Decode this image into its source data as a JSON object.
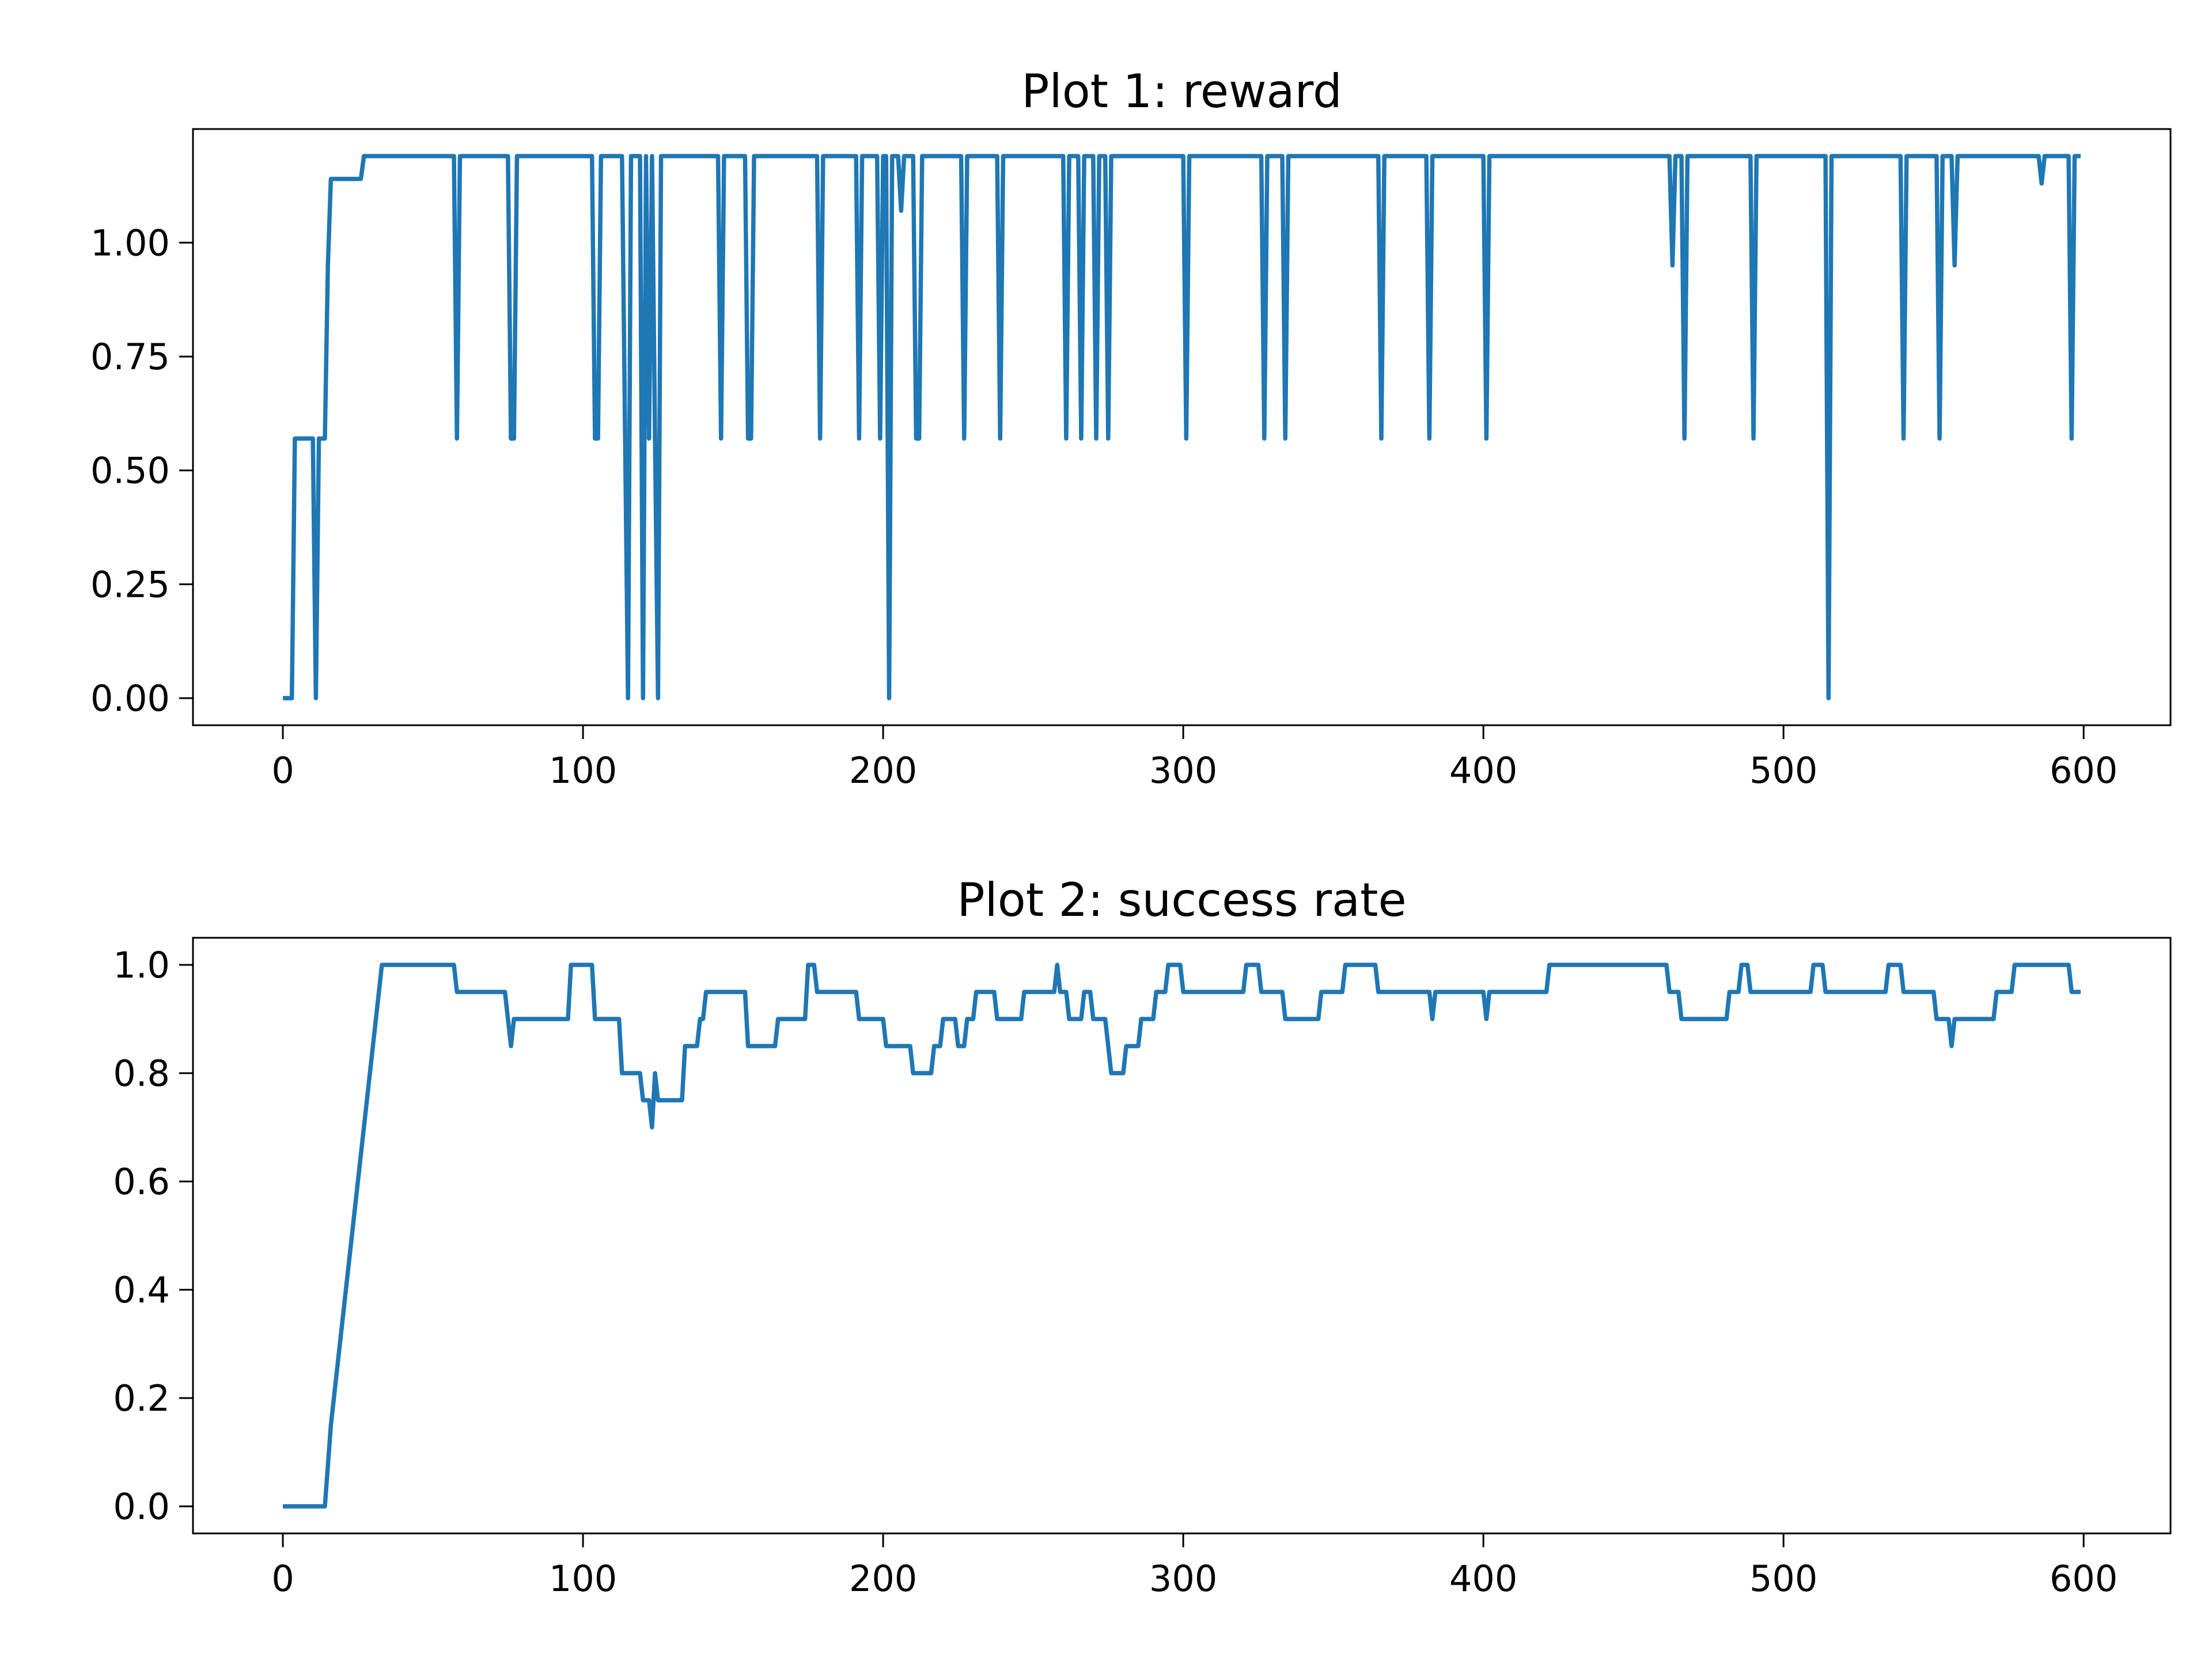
{
  "chart_data": [
    {
      "type": "line",
      "title": "Plot 1: reward",
      "color": "#1f77b4",
      "x": [
        0,
        3,
        4,
        10,
        11,
        12,
        14,
        15,
        16,
        26,
        27,
        57,
        58,
        59,
        75,
        76,
        77,
        78,
        103,
        104,
        105,
        106,
        113,
        115,
        116,
        119,
        120,
        121,
        122,
        123,
        124,
        125,
        126,
        145,
        146,
        147,
        154,
        155,
        156,
        157,
        178,
        179,
        180,
        191,
        192,
        193,
        198,
        199,
        200,
        201,
        202,
        203,
        205,
        206,
        207,
        210,
        211,
        212,
        213,
        226,
        227,
        228,
        238,
        239,
        240,
        260,
        261,
        262,
        265,
        266,
        267,
        270,
        271,
        272,
        274,
        275,
        276,
        300,
        301,
        302,
        326,
        327,
        328,
        333,
        334,
        335,
        365,
        366,
        367,
        381,
        382,
        383,
        400,
        401,
        402,
        462,
        463,
        464,
        466,
        467,
        468,
        489,
        490,
        491,
        514,
        515,
        516,
        539,
        540,
        541,
        551,
        552,
        553,
        556,
        557,
        558,
        585,
        586,
        587,
        595,
        596,
        597,
        599
      ],
      "values": [
        0,
        0,
        0.57,
        0.57,
        0,
        0.57,
        0.57,
        0.95,
        1.14,
        1.14,
        1.19,
        1.19,
        0.57,
        1.19,
        1.19,
        0.57,
        0.57,
        1.19,
        1.19,
        0.57,
        0.57,
        1.19,
        1.19,
        0,
        1.19,
        1.19,
        0,
        1.19,
        0.57,
        1.19,
        0.57,
        0,
        1.19,
        1.19,
        0.57,
        1.19,
        1.19,
        0.57,
        0.57,
        1.19,
        1.19,
        0.57,
        1.19,
        1.19,
        0.57,
        1.19,
        1.19,
        0.57,
        1.19,
        1.19,
        0,
        1.19,
        1.19,
        1.07,
        1.19,
        1.19,
        0.57,
        0.57,
        1.19,
        1.19,
        0.57,
        1.19,
        1.19,
        0.57,
        1.19,
        1.19,
        0.57,
        1.19,
        1.19,
        0.57,
        1.19,
        1.19,
        0.57,
        1.19,
        1.19,
        0.57,
        1.19,
        1.19,
        0.57,
        1.19,
        1.19,
        0.57,
        1.19,
        1.19,
        0.57,
        1.19,
        1.19,
        0.57,
        1.19,
        1.19,
        0.57,
        1.19,
        1.19,
        0.57,
        1.19,
        1.19,
        0.95,
        1.19,
        1.19,
        0.57,
        1.19,
        1.19,
        0.57,
        1.19,
        1.19,
        0,
        1.19,
        1.19,
        0.57,
        1.19,
        1.19,
        0.57,
        1.19,
        1.19,
        0.95,
        1.19,
        1.19,
        1.13,
        1.19,
        1.19,
        0.57,
        1.19,
        1.19
      ],
      "xlim": [
        -29.95,
        628.95
      ],
      "xticks": [
        0,
        100,
        200,
        300,
        400,
        500,
        600
      ],
      "ylim": [
        -0.0595,
        1.2495
      ],
      "yticks": [
        {
          "value": 0,
          "label": "0.00"
        },
        {
          "value": 0.25,
          "label": "0.25"
        },
        {
          "value": 0.5,
          "label": "0.50"
        },
        {
          "value": 0.75,
          "label": "0.75"
        },
        {
          "value": 1,
          "label": "1.00"
        }
      ],
      "grid": false
    },
    {
      "type": "line",
      "title": "Plot 2: success rate",
      "color": "#1f77b4",
      "x": [
        0,
        14,
        16,
        18,
        33,
        57,
        58,
        74,
        75,
        76,
        77,
        95,
        96,
        103,
        104,
        112,
        113,
        119,
        120,
        122,
        123,
        124,
        125,
        133,
        134,
        138,
        139,
        140,
        141,
        154,
        155,
        164,
        165,
        174,
        175,
        177,
        178,
        191,
        192,
        200,
        201,
        209,
        210,
        216,
        217,
        219,
        220,
        224,
        225,
        227,
        228,
        230,
        231,
        237,
        238,
        246,
        247,
        257,
        258,
        259,
        261,
        262,
        266,
        267,
        269,
        270,
        274,
        275,
        276,
        280,
        281,
        285,
        286,
        290,
        291,
        294,
        295,
        299,
        300,
        320,
        321,
        325,
        326,
        333,
        334,
        345,
        346,
        353,
        354,
        364,
        365,
        382,
        383,
        384,
        400,
        401,
        402,
        421,
        422,
        461,
        462,
        465,
        466,
        481,
        482,
        485,
        486,
        488,
        489,
        509,
        510,
        513,
        514,
        534,
        535,
        539,
        540,
        550,
        551,
        555,
        556,
        557,
        570,
        571,
        576,
        577,
        595,
        596,
        599
      ],
      "values": [
        0,
        0,
        0.15,
        0.25,
        1.0,
        1.0,
        0.95,
        0.95,
        0.9,
        0.85,
        0.9,
        0.9,
        1.0,
        1.0,
        0.9,
        0.9,
        0.8,
        0.8,
        0.75,
        0.75,
        0.7,
        0.8,
        0.75,
        0.75,
        0.85,
        0.85,
        0.9,
        0.9,
        0.95,
        0.95,
        0.85,
        0.85,
        0.9,
        0.9,
        1.0,
        1.0,
        0.95,
        0.95,
        0.9,
        0.9,
        0.85,
        0.85,
        0.8,
        0.8,
        0.85,
        0.85,
        0.9,
        0.9,
        0.85,
        0.85,
        0.9,
        0.9,
        0.95,
        0.95,
        0.9,
        0.9,
        0.95,
        0.95,
        1.0,
        0.95,
        0.95,
        0.9,
        0.9,
        0.95,
        0.95,
        0.9,
        0.9,
        0.85,
        0.8,
        0.8,
        0.85,
        0.85,
        0.9,
        0.9,
        0.95,
        0.95,
        1.0,
        1.0,
        0.95,
        0.95,
        1.0,
        1.0,
        0.95,
        0.95,
        0.9,
        0.9,
        0.95,
        0.95,
        1.0,
        1.0,
        0.95,
        0.95,
        0.9,
        0.95,
        0.95,
        0.9,
        0.95,
        0.95,
        1.0,
        1.0,
        0.95,
        0.95,
        0.9,
        0.9,
        0.95,
        0.95,
        1.0,
        1.0,
        0.95,
        0.95,
        1.0,
        1.0,
        0.95,
        0.95,
        1.0,
        1.0,
        0.95,
        0.95,
        0.9,
        0.9,
        0.85,
        0.9,
        0.9,
        0.95,
        0.95,
        1.0,
        1.0,
        0.95,
        0.95
      ],
      "xlim": [
        -29.95,
        628.95
      ],
      "xticks": [
        0,
        100,
        200,
        300,
        400,
        500,
        600
      ],
      "ylim": [
        -0.05,
        1.05
      ],
      "yticks": [
        {
          "value": 0,
          "label": "0.0"
        },
        0.2,
        0.4,
        0.6,
        0.8,
        {
          "value": 1,
          "label": "1.0"
        }
      ],
      "grid": false
    }
  ]
}
